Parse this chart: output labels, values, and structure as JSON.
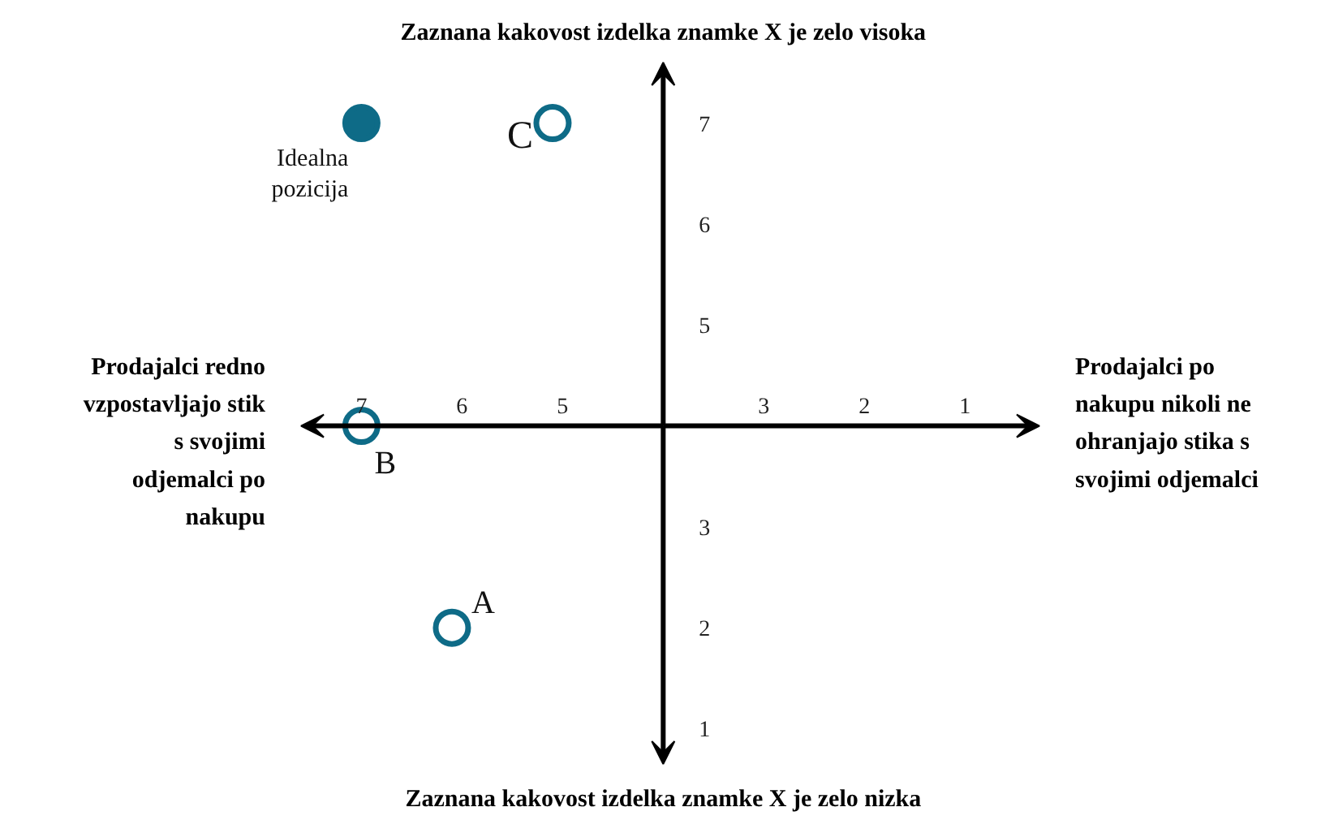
{
  "chart_data": {
    "type": "scatter",
    "xlim": [
      7.6,
      0.26
    ],
    "ylim": [
      0.65,
      7.6
    ],
    "xticks": [
      7,
      6,
      5,
      3,
      2,
      1
    ],
    "yticks": [
      7,
      6,
      5,
      3,
      2,
      1
    ],
    "grid": false,
    "marker": "circle",
    "annotations": [
      "Zaznana kakovost izdelka znamke X je zelo visoka",
      "Zaznana kakovost izdelka znamke X je zelo nizka",
      "Prodajalci redno vzpostavljajo stik s svojimi odjemalci po nakupu",
      "Prodajalci po nakupu nikoli ne ohranjajo stika s svojimi odjemalci"
    ],
    "series": [
      {
        "name": "Idealna pozicija",
        "color": "#0e6b87",
        "x": [
          7
        ],
        "values": [
          7
        ]
      },
      {
        "name": "C",
        "color": "#0e6b87",
        "x": [
          5.1
        ],
        "values": [
          7
        ]
      },
      {
        "name": "B",
        "color": "#0e6b87",
        "x": [
          7
        ],
        "values": [
          4
        ]
      },
      {
        "name": "A",
        "color": "#0e6b87",
        "x": [
          6.1
        ],
        "values": [
          2
        ]
      }
    ]
  }
}
